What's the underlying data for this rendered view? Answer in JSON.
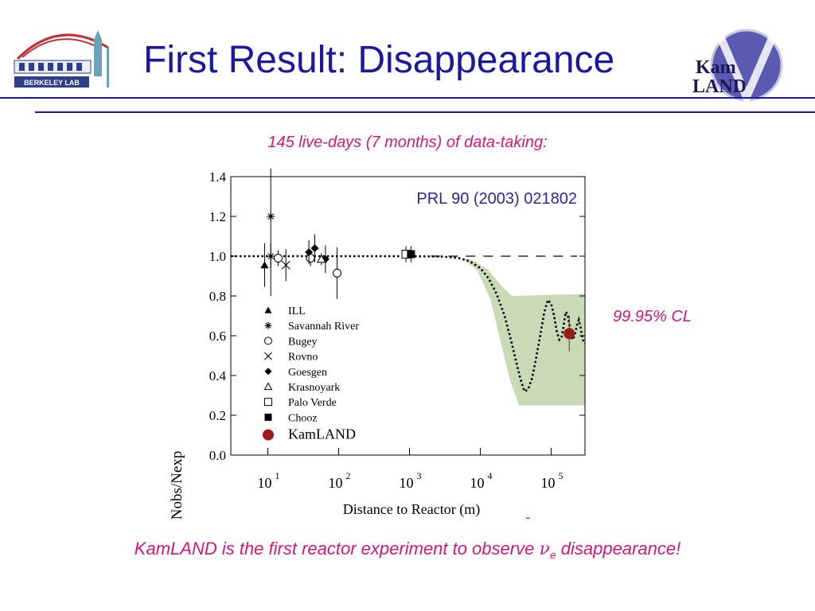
{
  "slide": {
    "title": "First Result:  Disappearance",
    "subtitle": "145 live-days (7 months) of data-taking:",
    "cl_label": "99.95% CL",
    "footer_before": "KamLAND is the first reactor experiment to observe ",
    "footer_nu": "ν",
    "footer_sub": "e",
    "footer_after": " disappearance!",
    "footer_dash": "-"
  },
  "logos": {
    "left": {
      "text": "BERKELEY LAB",
      "color": "#2e3e8c"
    },
    "right": {
      "text_line1": "Kam",
      "text_line2": "LAND",
      "color": "#3a3aa0"
    }
  },
  "chart_data": {
    "type": "scatter",
    "annotation": "PRL 90 (2003) 021802",
    "xlabel": "Distance to Reactor (m)",
    "ylabel": "Nobs/Nexp",
    "xscale": "log",
    "xlim": [
      3,
      300000
    ],
    "ylim": [
      0,
      1.4
    ],
    "yticks": [
      "0.0",
      "0.2",
      "0.4",
      "0.6",
      "0.8",
      "1.0",
      "1.2",
      "1.4"
    ],
    "xticks": [
      {
        "base": "10",
        "exp": "1",
        "value": 10
      },
      {
        "base": "10",
        "exp": "2",
        "value": 100
      },
      {
        "base": "10",
        "exp": "3",
        "value": 1000
      },
      {
        "base": "10",
        "exp": "4",
        "value": 10000
      },
      {
        "base": "10",
        "exp": "5",
        "value": 100000
      }
    ],
    "legend_position": "bottom-left",
    "series": [
      {
        "name": "ILL",
        "marker": "triangle-filled",
        "points": [
          {
            "x": 9,
            "y": 0.955,
            "err": 0.11
          }
        ]
      },
      {
        "name": "Savannah River",
        "marker": "asterisk",
        "points": [
          {
            "x": 11,
            "y": 1.2,
            "err": 0.4
          },
          {
            "x": 11,
            "y": 1.0,
            "err": 0.06
          }
        ]
      },
      {
        "name": "Bugey",
        "marker": "circle-open",
        "points": [
          {
            "x": 14,
            "y": 0.99,
            "err": 0.04
          },
          {
            "x": 40,
            "y": 0.99,
            "err": 0.04
          },
          {
            "x": 95,
            "y": 0.915,
            "err": 0.13
          }
        ]
      },
      {
        "name": "Rovno",
        "marker": "x",
        "points": [
          {
            "x": 18,
            "y": 0.955,
            "err": 0.08
          }
        ]
      },
      {
        "name": "Goesgen",
        "marker": "diamond-filled",
        "points": [
          {
            "x": 38,
            "y": 1.02,
            "err": 0.06
          },
          {
            "x": 46,
            "y": 1.04,
            "err": 0.07
          },
          {
            "x": 65,
            "y": 0.985,
            "err": 0.07
          }
        ]
      },
      {
        "name": "Krasnoyark",
        "marker": "triangle-open",
        "points": [
          {
            "x": 57,
            "y": 0.985,
            "err": 0.03
          }
        ]
      },
      {
        "name": "Palo Verde",
        "marker": "square-open",
        "points": [
          {
            "x": 890,
            "y": 1.01,
            "err": 0.04
          }
        ]
      },
      {
        "name": "Chooz",
        "marker": "square-filled",
        "points": [
          {
            "x": 1050,
            "y": 1.01,
            "err": 0.04
          }
        ]
      },
      {
        "name": "KamLAND",
        "marker": "circle-filled-large",
        "points": [
          {
            "x": 180000,
            "y": 0.611,
            "err": 0.09
          }
        ]
      }
    ],
    "no_oscillation_y": 1.0,
    "oscillation_curve": [
      [
        3,
        1.0
      ],
      [
        1000,
        1.0
      ],
      [
        3000,
        0.998
      ],
      [
        5000,
        0.99
      ],
      [
        7000,
        0.975
      ],
      [
        10000,
        0.94
      ],
      [
        13000,
        0.89
      ],
      [
        17000,
        0.81
      ],
      [
        22000,
        0.7
      ],
      [
        27000,
        0.58
      ],
      [
        32000,
        0.47
      ],
      [
        37000,
        0.38
      ],
      [
        42000,
        0.32
      ],
      [
        47000,
        0.33
      ],
      [
        53000,
        0.38
      ],
      [
        60000,
        0.47
      ],
      [
        70000,
        0.6
      ],
      [
        80000,
        0.72
      ],
      [
        90000,
        0.78
      ],
      [
        100000,
        0.76
      ],
      [
        110000,
        0.7
      ],
      [
        120000,
        0.62
      ],
      [
        130000,
        0.58
      ],
      [
        140000,
        0.59
      ],
      [
        150000,
        0.65
      ],
      [
        160000,
        0.72
      ],
      [
        170000,
        0.71
      ],
      [
        180000,
        0.66
      ],
      [
        190000,
        0.6
      ],
      [
        200000,
        0.58
      ],
      [
        215000,
        0.6
      ],
      [
        230000,
        0.65
      ],
      [
        245000,
        0.68
      ],
      [
        260000,
        0.64
      ],
      [
        280000,
        0.58
      ],
      [
        300000,
        0.56
      ]
    ],
    "allowed_band_upper": [
      [
        3500,
        1.0
      ],
      [
        8000,
        0.98
      ],
      [
        13000,
        0.93
      ],
      [
        20000,
        0.85
      ],
      [
        28000,
        0.8
      ],
      [
        300000,
        0.81
      ]
    ],
    "allowed_band_lower": [
      [
        300000,
        0.25
      ],
      [
        35000,
        0.25
      ],
      [
        26000,
        0.38
      ],
      [
        20000,
        0.55
      ],
      [
        14000,
        0.78
      ],
      [
        9000,
        0.93
      ],
      [
        5500,
        0.99
      ],
      [
        3500,
        1.0
      ]
    ],
    "colors": {
      "band": "#c8dab6",
      "curve": "#000000",
      "kamland": "#9b1a1a",
      "annotation": "#2a2a90"
    }
  }
}
